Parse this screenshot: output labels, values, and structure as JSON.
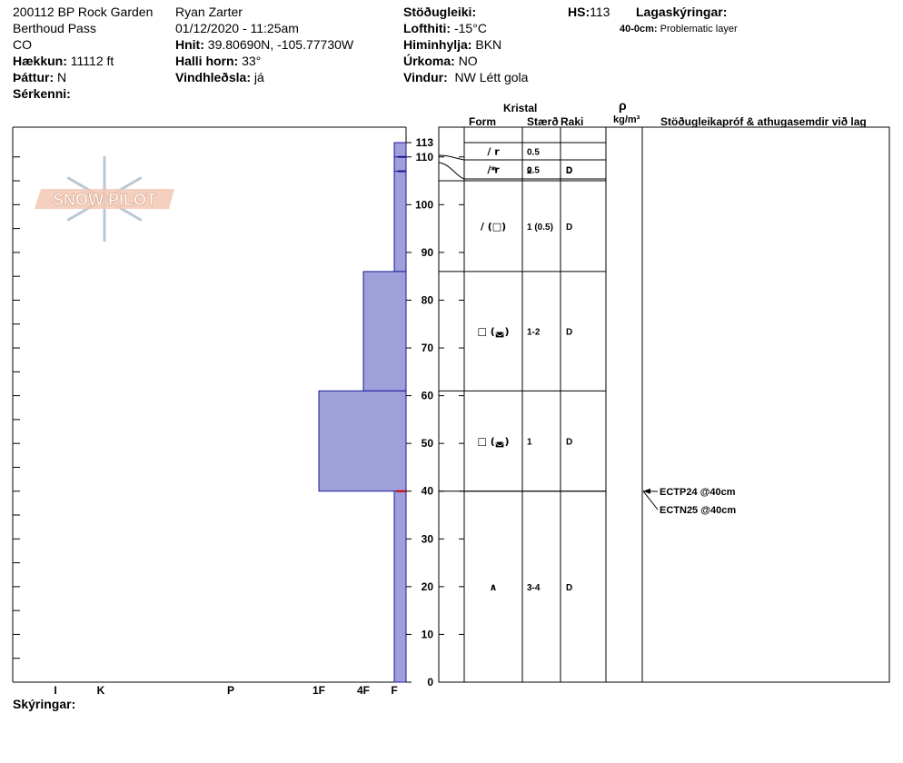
{
  "header": {
    "site_name": "200112 BP Rock Garden",
    "location": "Berthoud Pass",
    "state": "CO",
    "elevation_label": "Hækkun:",
    "elevation_value": "11112 ft",
    "aspect_label": "Þáttur:",
    "aspect_value": "N",
    "features_label": "Sérkenni:",
    "observer": "Ryan Zarter",
    "datetime": "01/12/2020 - 11:25am",
    "coords_label": "Hnit:",
    "coords_value": "39.80690N, -105.77730W",
    "slope_label": "Halli horn:",
    "slope_value": "33°",
    "wind_loading_label": "Vindhleðsla:",
    "wind_loading_value": "já",
    "stability_label": "Stöðugleiki:",
    "air_temp_label": "Lofthiti:",
    "air_temp_value": "-15°C",
    "sky_label": "Himinhylja:",
    "sky_value": "BKN",
    "precip_label": "Úrkoma:",
    "precip_value": "NO",
    "wind_label": "Vindur:",
    "wind_value": "NW Létt gola",
    "hs_label": "HS:",
    "hs_value": "113",
    "legend_title": "Lagaskýringar:",
    "legend_item_range": "40-0cm:",
    "legend_item_text": "Problematic layer"
  },
  "logo": {
    "text": "SNOW PILOT"
  },
  "columns": {
    "kristal": "Kristal",
    "form": "Form",
    "size": "Stærð",
    "moisture": "Raki",
    "rho": "ρ",
    "density_unit": "kg/m³",
    "stability_notes": "Stöðugleikapróf & athugasemdir við lag"
  },
  "footer": {
    "remarks_label": "Skýringar:"
  },
  "chart_data": {
    "type": "snow-profile",
    "ylim": [
      0,
      113
    ],
    "y_ticks": [
      0,
      10,
      20,
      30,
      40,
      50,
      60,
      70,
      80,
      90,
      100,
      110,
      113
    ],
    "hardness_scale": [
      "I",
      "K",
      "P",
      "1F",
      "4F",
      "F"
    ],
    "hardness_profile": [
      {
        "bottom": 110,
        "top": 113,
        "hardness": "F"
      },
      {
        "bottom": 107,
        "top": 110,
        "hardness": "F"
      },
      {
        "bottom": 86,
        "top": 107,
        "hardness": "F"
      },
      {
        "bottom": 61,
        "top": 86,
        "hardness": "4F"
      },
      {
        "bottom": 40,
        "top": 61,
        "hardness": "1F"
      },
      {
        "bottom": 0,
        "top": 40,
        "hardness": "F"
      }
    ],
    "layers": [
      {
        "top": 113,
        "bottom": 110,
        "form": "/ r",
        "size": "0.5",
        "moisture": ""
      },
      {
        "top": 110,
        "bottom": 107,
        "form": "/ r",
        "size": "0.5",
        "moisture": "D"
      },
      {
        "top": 107,
        "bottom": 105,
        "form": "*",
        "size": "2",
        "moisture": "D"
      },
      {
        "top": 105,
        "bottom": 86,
        "form": "/ (□)",
        "size": "1 (0.5)",
        "moisture": "D"
      },
      {
        "top": 86,
        "bottom": 61,
        "form": "□ (◛)",
        "size": "1-2",
        "moisture": "D"
      },
      {
        "top": 61,
        "bottom": 40,
        "form": "□ (◛)",
        "size": "1",
        "moisture": "D"
      },
      {
        "top": 40,
        "bottom": 0,
        "form": "∧",
        "size": "3-4",
        "moisture": "D"
      }
    ],
    "stability_tests": [
      {
        "depth": 40,
        "label": "ECTP24 @40cm"
      },
      {
        "depth": 40,
        "label": "ECTN25 @40cm"
      }
    ],
    "colors": {
      "hardness_fill": "#9f9fd9",
      "hardness_stroke": "#1a1a9c",
      "problem_marker": "#cc0000"
    }
  }
}
